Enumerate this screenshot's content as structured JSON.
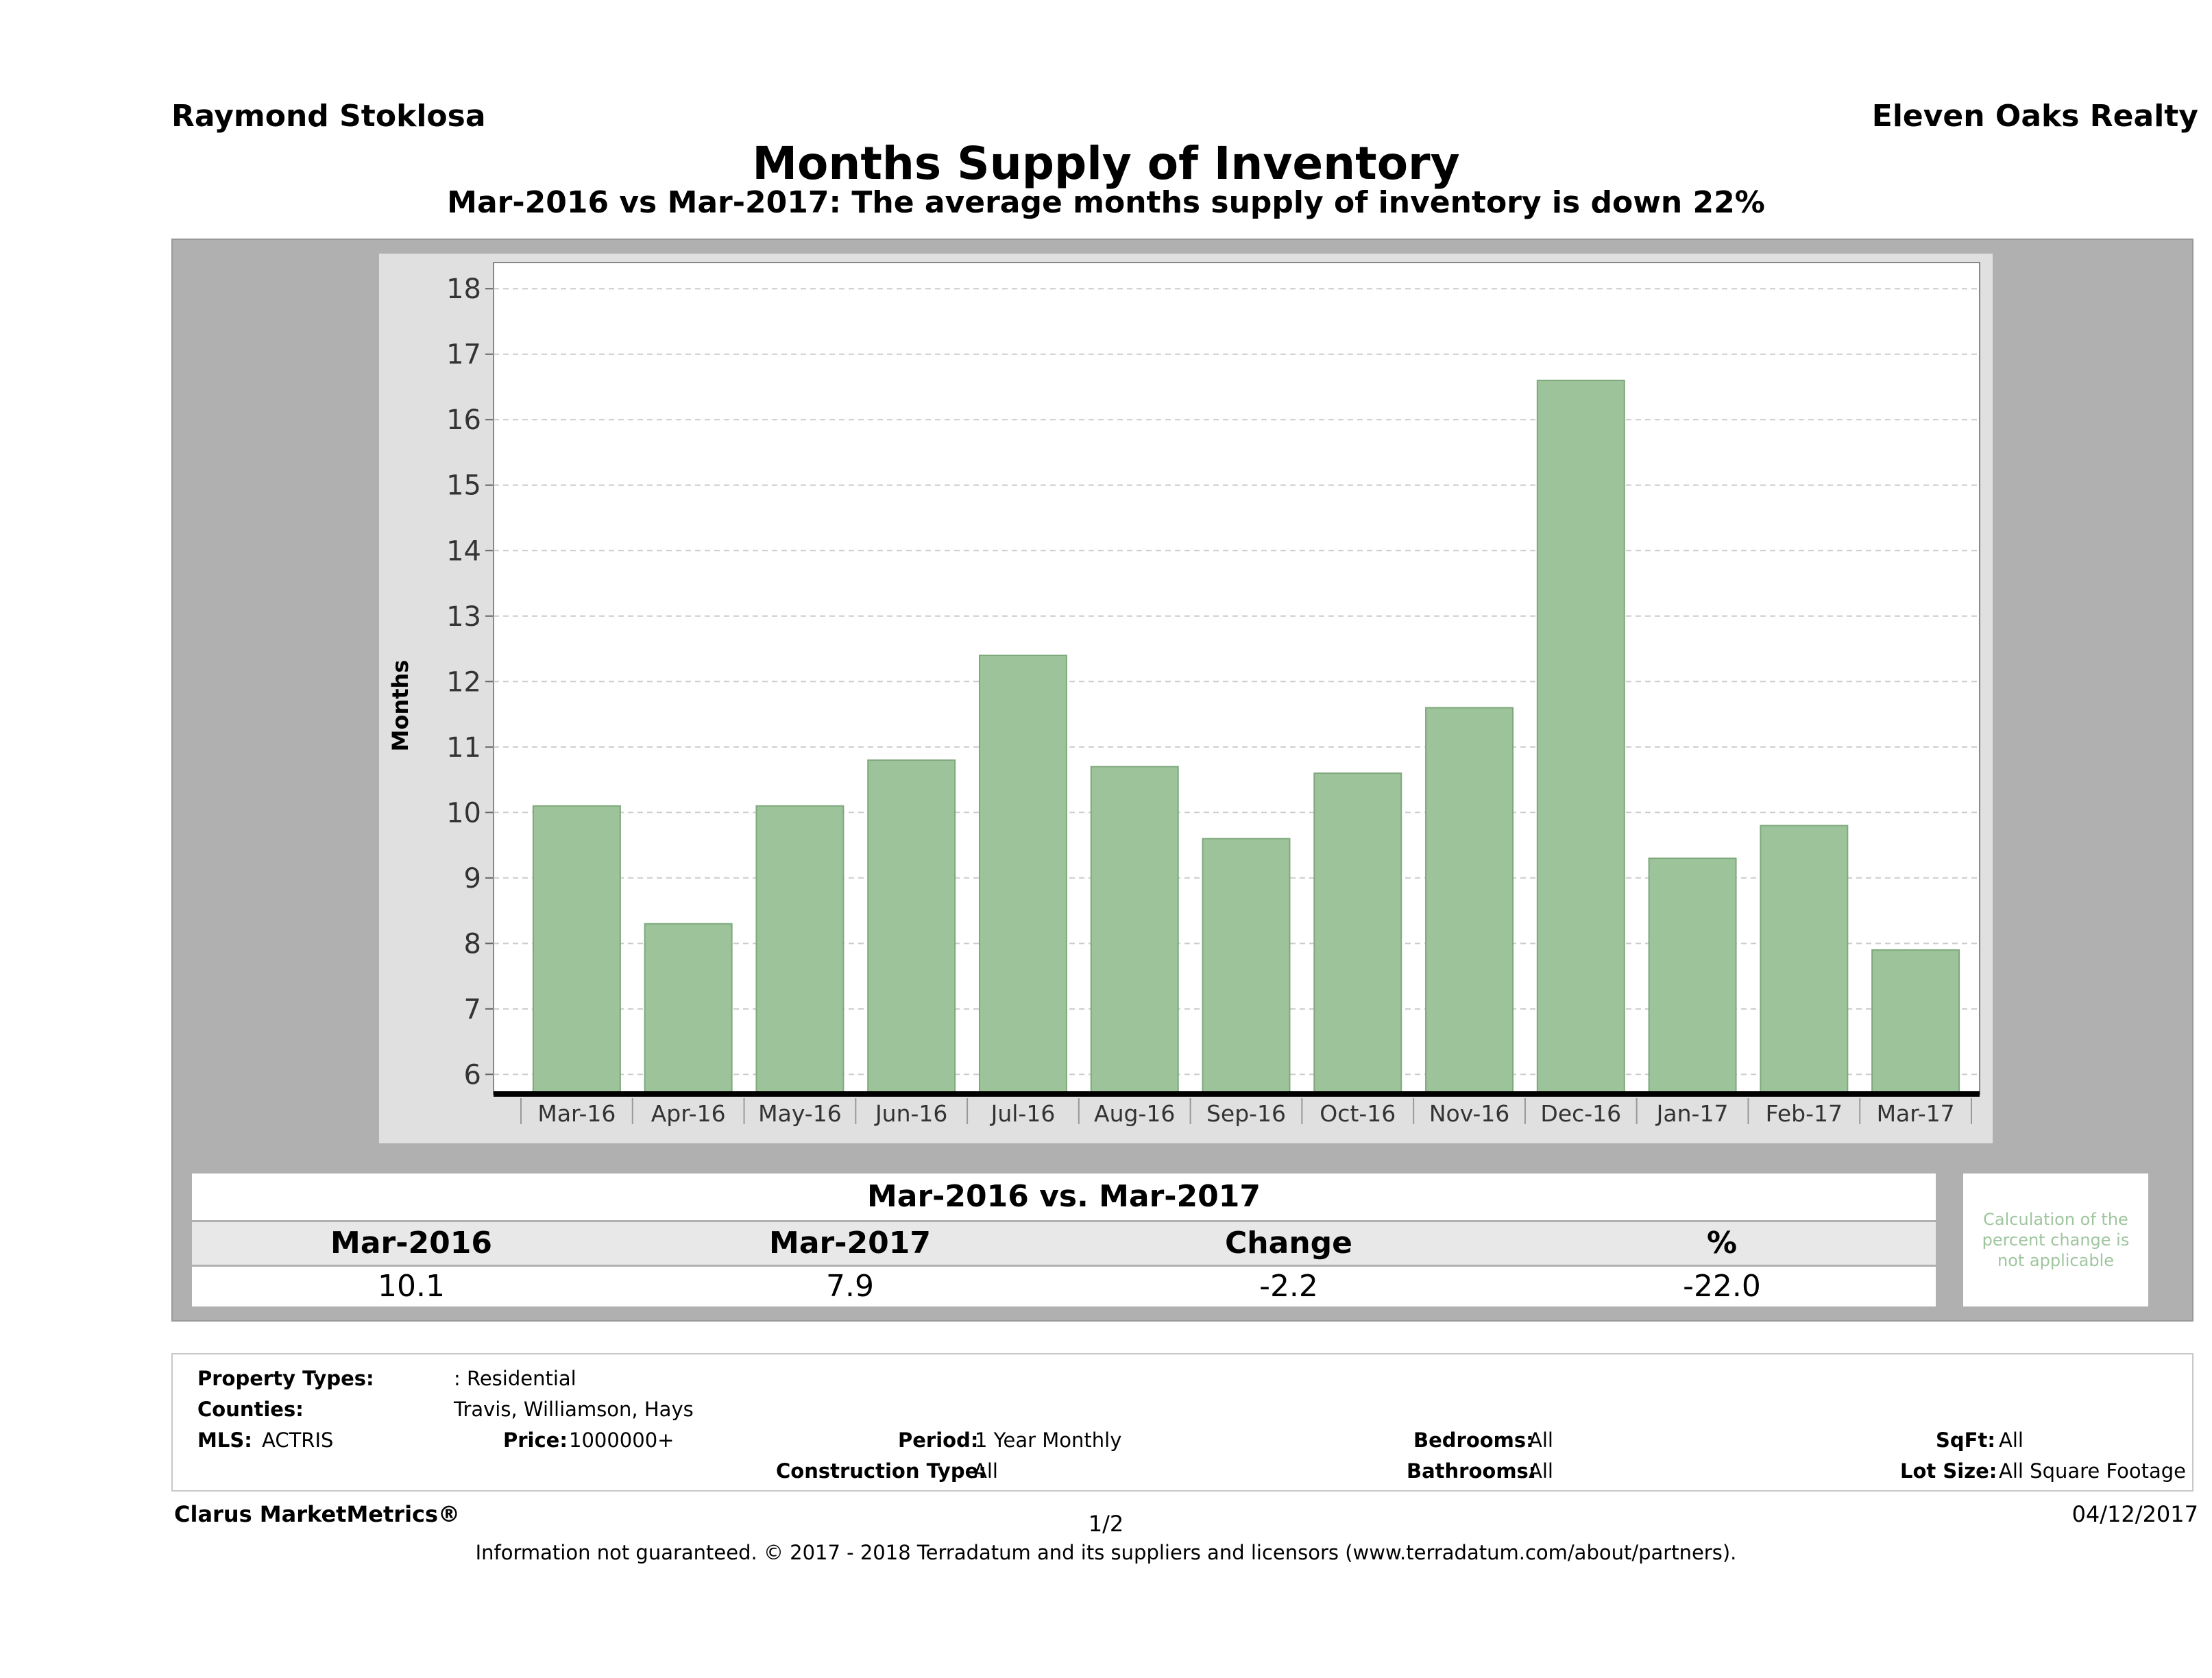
{
  "header": {
    "agent_name": "Raymond Stoklosa",
    "company": "Eleven Oaks Realty"
  },
  "chart_data": {
    "type": "bar",
    "title": "Months Supply of Inventory",
    "subtitle": "Mar-2016 vs Mar-2017: The average months supply of inventory is down 22%",
    "ylabel": "Months",
    "xlabel": "",
    "categories": [
      "Mar-16",
      "Apr-16",
      "May-16",
      "Jun-16",
      "Jul-16",
      "Aug-16",
      "Sep-16",
      "Oct-16",
      "Nov-16",
      "Dec-16",
      "Jan-17",
      "Feb-17",
      "Mar-17"
    ],
    "values": [
      10.1,
      8.3,
      10.1,
      10.8,
      12.4,
      10.7,
      9.6,
      10.6,
      11.6,
      16.6,
      9.3,
      9.8,
      7.9
    ],
    "yticks": [
      6,
      7,
      8,
      9,
      10,
      11,
      12,
      13,
      14,
      15,
      16,
      17,
      18
    ],
    "ylim": [
      5.7,
      18.4
    ],
    "grid": true,
    "bar_color": "#9dc39b"
  },
  "comparison": {
    "title": "Mar-2016 vs. Mar-2017",
    "headers": [
      "Mar-2016",
      "Mar-2017",
      "Change",
      "%"
    ],
    "values": [
      "10.1",
      "7.9",
      "-2.2",
      "-22.0"
    ],
    "note": "Calculation of the percent change is not applicable"
  },
  "filters": {
    "property_types_label": "Property Types:",
    "property_types_value": ": Residential",
    "counties_label": "Counties:",
    "counties_value": "Travis, Williamson, Hays",
    "mls_label": "MLS:",
    "mls_value": "ACTRIS",
    "price_label": "Price:",
    "price_value": "1000000+",
    "period_label": "Period:",
    "period_value": "1 Year Monthly",
    "construction_label": "Construction Type:",
    "construction_value": "All",
    "bedrooms_label": "Bedrooms:",
    "bedrooms_value": "All",
    "bathrooms_label": "Bathrooms:",
    "bathrooms_value": "All",
    "sqft_label": "SqFt:",
    "sqft_value": "All",
    "lot_label": "Lot Size:",
    "lot_value": "All Square Footage"
  },
  "footer": {
    "brand": "Clarus MarketMetrics®",
    "page": "1/2",
    "date": "04/12/2017",
    "disclaimer": "Information not guaranteed. © 2017 - 2018 Terradatum and its suppliers and licensors (www.terradatum.com/about/partners)."
  }
}
